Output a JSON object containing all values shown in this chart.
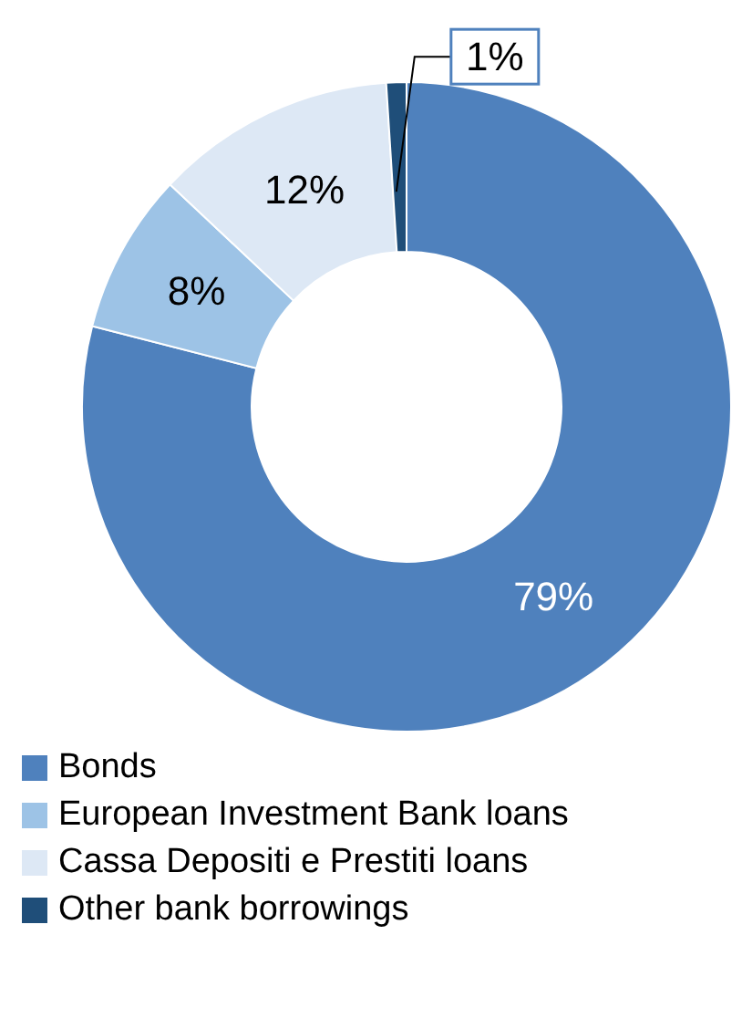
{
  "chart_data": {
    "type": "donut",
    "categories": [
      "Bonds",
      "European Investment Bank loans",
      "Cassa Depositi e Prestiti loans",
      "Other bank borrowings"
    ],
    "values": [
      79,
      8,
      12,
      1
    ],
    "colors": [
      "#4f81bd",
      "#9dc3e6",
      "#dde8f5",
      "#1f4e79"
    ],
    "value_labels": [
      "79%",
      "8%",
      "12%",
      "1%"
    ],
    "legend": "bottom"
  }
}
